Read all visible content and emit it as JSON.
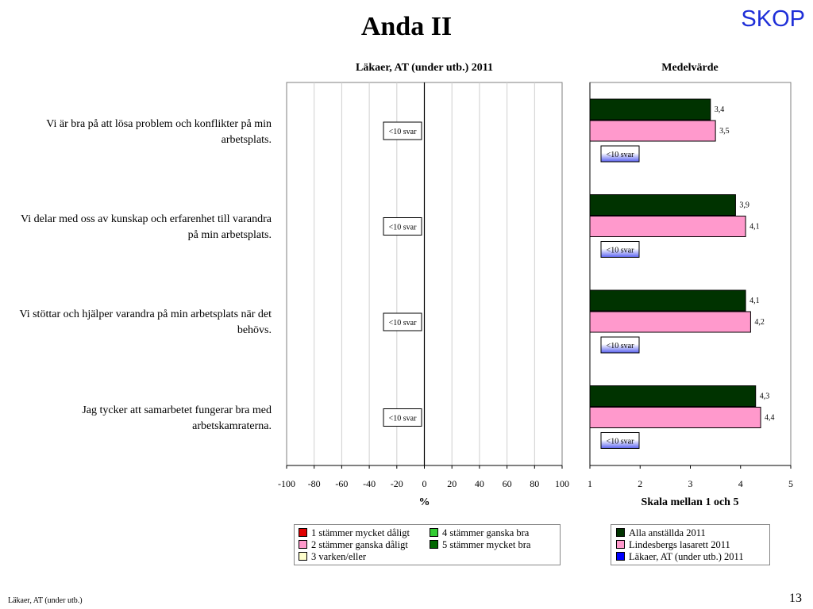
{
  "title": "Anda II",
  "brand": "SKOP",
  "footer_left": "Läkaer, AT (under utb.)",
  "page_number": "13",
  "questions": [
    "Vi är bra på att lösa problem och konflikter på min arbetsplats.",
    "Vi delar med oss av kunskap och erfarenhet till varandra på min arbetsplats.",
    "Vi stöttar och hjälper varandra på min arbetsplats när det behövs.",
    "Jag tycker att samarbetet fungerar bra med arbetskamraterna."
  ],
  "chart_data": [
    {
      "type": "bar",
      "title": "Läkaer, AT (under utb.) 2011",
      "xlabel": "%",
      "xlim": [
        -100,
        100
      ],
      "ticks": [
        -100,
        -80,
        -60,
        -40,
        -20,
        0,
        20,
        40,
        60,
        80,
        100
      ],
      "categories": [
        "Vi är bra på att lösa problem och konflikter på min arbetsplats.",
        "Vi delar med oss av kunskap och erfarenhet till varandra på min arbetsplats.",
        "Vi stöttar och hjälper varandra på min arbetsplats när det behövs.",
        "Jag tycker att samarbetet fungerar bra med arbetskamraterna."
      ],
      "annotations": [
        "<10 svar",
        "<10 svar",
        "<10 svar",
        "<10 svar"
      ],
      "legend": [
        {
          "label": "1 stämmer mycket dåligt",
          "color": "#e00000"
        },
        {
          "label": "4 stämmer ganska bra",
          "color": "#33cc33"
        },
        {
          "label": "2 stämmer ganska dåligt",
          "color": "#ff99cc"
        },
        {
          "label": "5 stämmer mycket bra",
          "color": "#006600"
        },
        {
          "label": "3 varken/eller",
          "color": "#ffffcc"
        }
      ],
      "grid": true
    },
    {
      "type": "bar",
      "orientation": "horizontal",
      "title": "Medelvärde",
      "xlabel": "Skala mellan 1 och 5",
      "xlim": [
        1,
        5
      ],
      "ticks": [
        1,
        2,
        3,
        4,
        5
      ],
      "series": [
        {
          "name": "Alla anställda 2011",
          "color": "#003300",
          "values": [
            3.4,
            3.9,
            4.1,
            4.3
          ],
          "labels": [
            "3,4",
            "3,9",
            "4,1",
            "4,3"
          ]
        },
        {
          "name": "Lindesbergs lasarett 2011",
          "color": "#ff99cc",
          "values": [
            3.5,
            4.1,
            4.2,
            4.4
          ],
          "labels": [
            "3,5",
            "4,1",
            "4,2",
            "4,4"
          ]
        },
        {
          "name": "Läkaer, AT (under utb.) 2011",
          "color": "#0000ff",
          "values": [
            null,
            null,
            null,
            null
          ],
          "labels": [
            "<10 svar",
            "<10 svar",
            "<10 svar",
            "<10 svar"
          ]
        }
      ],
      "legend_position": "bottom",
      "grid": false
    }
  ]
}
